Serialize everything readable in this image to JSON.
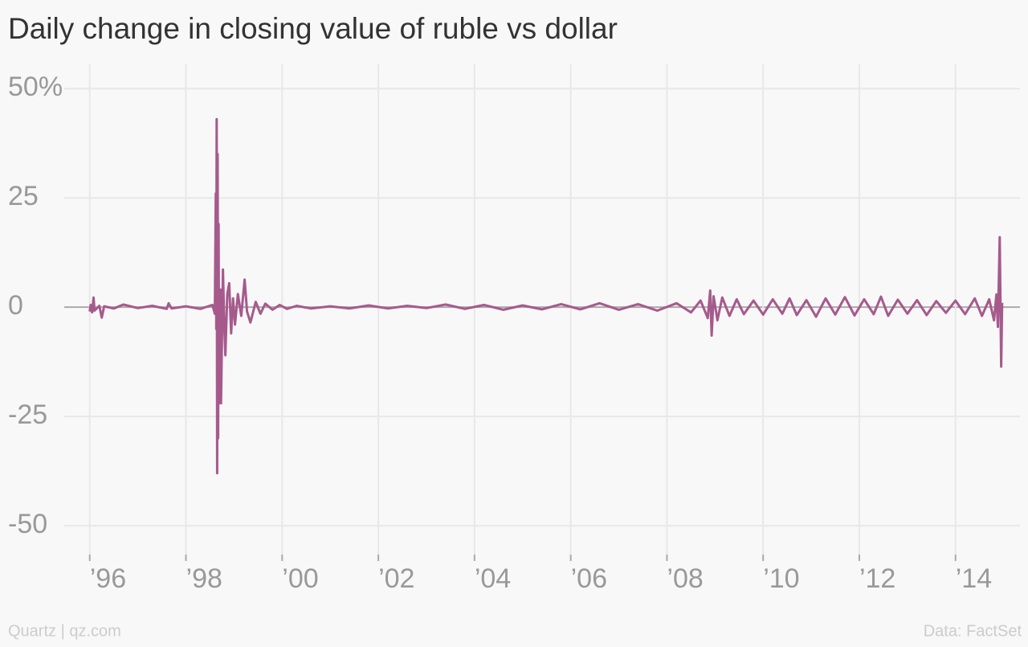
{
  "chart_data": {
    "type": "line",
    "title": "Daily change in closing value of ruble vs dollar",
    "source_left": "Quartz | qz.com",
    "source_right": "Data: FactSet",
    "xlim": [
      1995.47,
      2015.34
    ],
    "xticks": [
      {
        "value": 1996,
        "label": "’96"
      },
      {
        "value": 1998,
        "label": "’98"
      },
      {
        "value": 2000,
        "label": "’00"
      },
      {
        "value": 2002,
        "label": "’02"
      },
      {
        "value": 2004,
        "label": "’04"
      },
      {
        "value": 2006,
        "label": "’06"
      },
      {
        "value": 2008,
        "label": "’08"
      },
      {
        "value": 2010,
        "label": "’10"
      },
      {
        "value": 2012,
        "label": "’12"
      },
      {
        "value": 2014,
        "label": "’14"
      }
    ],
    "ylim": [
      -56.6,
      52.8
    ],
    "yticks": [
      {
        "value": 50,
        "label": "50%"
      },
      25,
      0,
      -25,
      -50
    ],
    "grid": true,
    "series": [
      {
        "color": "#a65a8c",
        "x": [
          1996.0,
          1996.02,
          1996.05,
          1996.08,
          1996.1,
          1996.2,
          1996.25,
          1996.3,
          1996.5,
          1996.7,
          1997.0,
          1997.3,
          1997.6,
          1997.64,
          1997.7,
          1998.0,
          1998.3,
          1998.55,
          1998.6,
          1998.62,
          1998.63,
          1998.64,
          1998.65,
          1998.66,
          1998.67,
          1998.68,
          1998.69,
          1998.7,
          1998.72,
          1998.73,
          1998.77,
          1998.8,
          1998.82,
          1998.86,
          1998.9,
          1998.94,
          1998.98,
          1999.02,
          1999.08,
          1999.15,
          1999.22,
          1999.27,
          1999.34,
          1999.45,
          1999.55,
          1999.65,
          1999.8,
          1999.95,
          2000.1,
          2000.3,
          2000.6,
          2001.0,
          2001.4,
          2001.8,
          2002.2,
          2002.6,
          2003.0,
          2003.4,
          2003.8,
          2004.2,
          2004.6,
          2005.0,
          2005.4,
          2005.8,
          2006.2,
          2006.6,
          2007.0,
          2007.4,
          2007.8,
          2008.2,
          2008.5,
          2008.7,
          2008.85,
          2008.9,
          2008.93,
          2008.97,
          2009.05,
          2009.15,
          2009.3,
          2009.45,
          2009.6,
          2009.8,
          2010.0,
          2010.2,
          2010.4,
          2010.55,
          2010.7,
          2010.9,
          2011.1,
          2011.3,
          2011.5,
          2011.7,
          2011.9,
          2012.1,
          2012.3,
          2012.45,
          2012.6,
          2012.8,
          2013.0,
          2013.2,
          2013.4,
          2013.6,
          2013.8,
          2014.0,
          2014.2,
          2014.4,
          2014.55,
          2014.7,
          2014.8,
          2014.85,
          2014.88,
          2014.92,
          2014.95,
          2014.97
        ],
        "values": [
          -1,
          0.5,
          -1.2,
          2.2,
          -0.8,
          0.3,
          -2.4,
          0.2,
          -0.3,
          0.6,
          -0.2,
          0.3,
          -0.4,
          0.9,
          -0.3,
          0.2,
          -0.4,
          0.5,
          -1.5,
          26,
          -5,
          43,
          -38,
          35,
          -30,
          19,
          -22,
          -3,
          4,
          -22,
          8.6,
          -5,
          -11,
          3,
          5.5,
          -6,
          2,
          -4,
          3,
          -2,
          6.3,
          -1,
          -3.5,
          1.2,
          -1.5,
          0.8,
          -0.6,
          0.5,
          -0.4,
          0.3,
          -0.3,
          0.2,
          -0.3,
          0.4,
          -0.3,
          0.3,
          -0.2,
          0.6,
          -0.4,
          0.5,
          -0.6,
          0.4,
          -0.5,
          0.7,
          -0.5,
          0.9,
          -0.6,
          0.7,
          -0.8,
          0.9,
          -1.2,
          1.5,
          -2.5,
          3.8,
          -6.5,
          2.5,
          -3,
          2.2,
          -2,
          1.8,
          -1.6,
          1.5,
          -1.7,
          1.8,
          -1.5,
          2,
          -1.8,
          1.6,
          -2.2,
          2,
          -1.7,
          2.3,
          -1.9,
          1.8,
          -1.6,
          2.4,
          -2,
          1.7,
          -1.5,
          1.6,
          -1.8,
          1.4,
          -1.3,
          1.5,
          -1.6,
          2,
          -2,
          1.8,
          -3,
          2.9,
          -4.5,
          16,
          -13.6,
          1
        ]
      }
    ]
  }
}
